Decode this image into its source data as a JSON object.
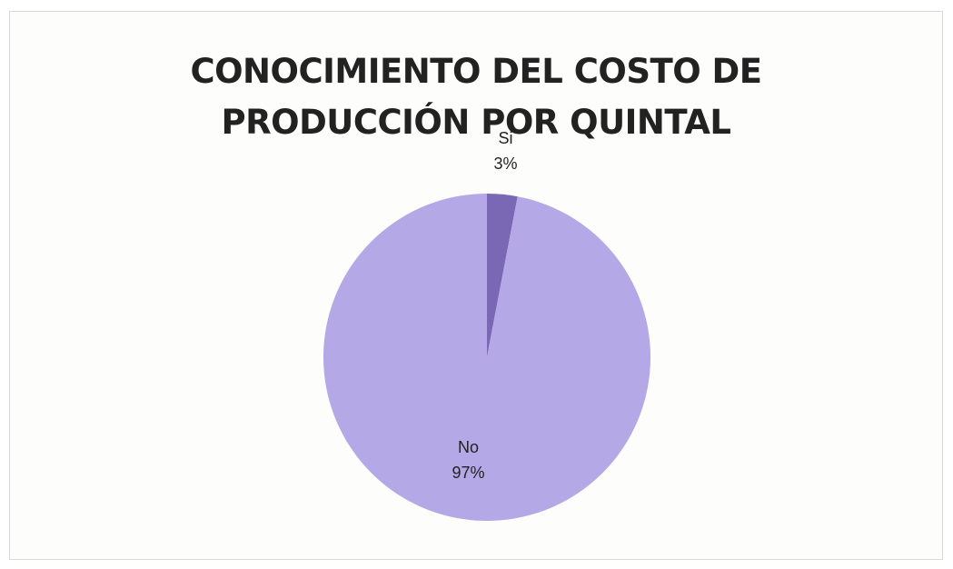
{
  "chart_data": {
    "type": "pie",
    "title": "CONOCIMIENTO DEL COSTO DE PRODUCCIÓN POR QUINTAL",
    "title_lines": [
      "CONOCIMIENTO DEL COSTO DE",
      "PRODUCCIÓN POR QUINTAL"
    ],
    "categories": [
      "Si",
      "No"
    ],
    "values": [
      3,
      97
    ],
    "value_labels": [
      "3%",
      "97%"
    ],
    "colors": [
      "#7b68b5",
      "#b4a9e6"
    ],
    "start_angle_deg": 0,
    "direction": "clockwise",
    "legend": "none",
    "label_position": [
      "outside",
      "inside"
    ]
  }
}
